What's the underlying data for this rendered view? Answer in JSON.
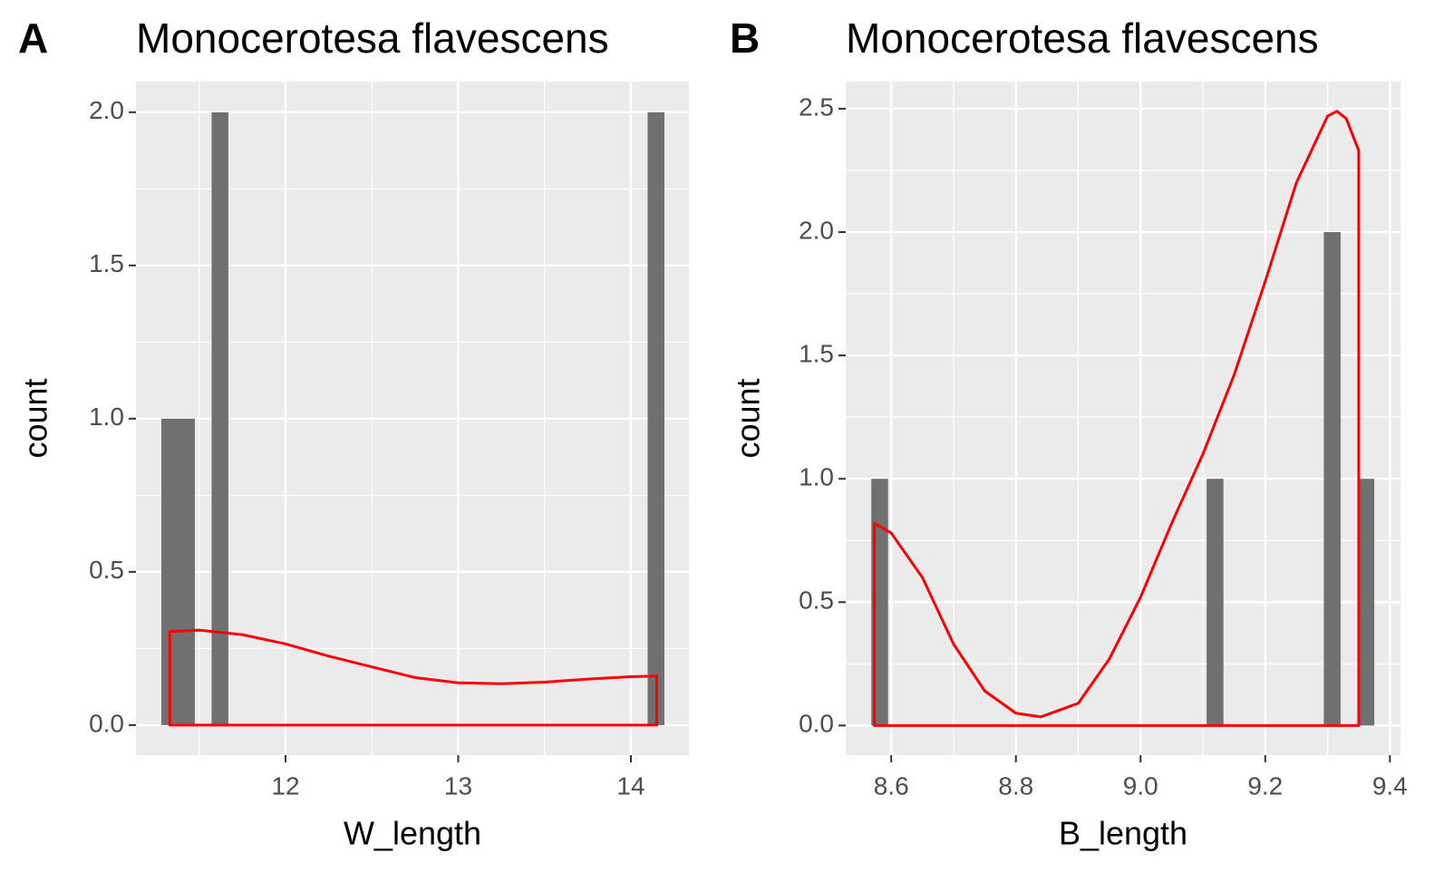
{
  "chart_data": [
    {
      "type": "histogram",
      "tag": "A",
      "title": "Monocerotesa flavescens",
      "xlabel": "W_length",
      "ylabel": "count",
      "bins": [
        11.281,
        11.378,
        11.475,
        11.572,
        11.669,
        11.767,
        11.864,
        11.961,
        12.058,
        12.155,
        12.252,
        12.349,
        12.446,
        12.543,
        12.64,
        12.738,
        12.835,
        12.932,
        13.029,
        13.126,
        13.223,
        13.32,
        13.417,
        13.514,
        13.611,
        13.709,
        13.806,
        13.903,
        14.0,
        14.097,
        14.194
      ],
      "counts": [
        1,
        1,
        0,
        2,
        0,
        0,
        0,
        0,
        0,
        0,
        0,
        0,
        0,
        0,
        0,
        0,
        0,
        0,
        0,
        0,
        0,
        0,
        0,
        0,
        0,
        0,
        0,
        0,
        0,
        2
      ],
      "color": "#707070",
      "density": {
        "color": "#ff0000",
        "x": [
          11.33,
          11.5,
          11.75,
          12,
          12.25,
          12.5,
          12.75,
          13,
          13.25,
          13.5,
          13.75,
          14,
          14.15
        ],
        "y": [
          0.305,
          0.31,
          0.295,
          0.265,
          0.225,
          0.19,
          0.155,
          0.138,
          0.135,
          0.14,
          0.15,
          0.158,
          0.16
        ]
      },
      "xlim": [
        11.134,
        14.336
      ],
      "ylim": [
        -0.098,
        2.1
      ],
      "xticks": [
        12,
        13,
        14
      ],
      "yticks": [
        {
          "value": 0,
          "label": "0.0"
        },
        0.5,
        {
          "value": 1,
          "label": "1.0"
        },
        1.5,
        {
          "value": 2,
          "label": "2.0"
        }
      ]
    },
    {
      "type": "histogram",
      "tag": "B",
      "title": "Monocerotesa flavescens",
      "xlabel": "B_length",
      "ylabel": "count",
      "bins": [
        8.568,
        8.595,
        8.622,
        8.649,
        8.676,
        8.703,
        8.729,
        8.756,
        8.783,
        8.81,
        8.837,
        8.864,
        8.891,
        8.918,
        8.945,
        8.972,
        8.998,
        9.025,
        9.052,
        9.079,
        9.106,
        9.133,
        9.16,
        9.187,
        9.214,
        9.241,
        9.267,
        9.294,
        9.321,
        9.348,
        9.375
      ],
      "counts": [
        1,
        0,
        0,
        0,
        0,
        0,
        0,
        0,
        0,
        0,
        0,
        0,
        0,
        0,
        0,
        0,
        0,
        0,
        0,
        0,
        1,
        0,
        0,
        0,
        0,
        0,
        0,
        2,
        0,
        1
      ],
      "color": "#707070",
      "density": {
        "color": "#ff0000",
        "x": [
          8.573,
          8.6,
          8.65,
          8.7,
          8.75,
          8.8,
          8.84,
          8.9,
          8.95,
          9.0,
          9.05,
          9.1,
          9.15,
          9.2,
          9.25,
          9.3,
          9.315,
          9.33,
          9.35
        ],
        "y": [
          0.82,
          0.78,
          0.6,
          0.33,
          0.14,
          0.05,
          0.035,
          0.09,
          0.27,
          0.52,
          0.82,
          1.1,
          1.42,
          1.8,
          2.2,
          2.47,
          2.49,
          2.46,
          2.33
        ]
      },
      "xlim": [
        8.527,
        9.417
      ],
      "ylim": [
        -0.12,
        2.61
      ],
      "xticks": [
        8.6,
        8.8,
        {
          "value": 9,
          "label": "9.0"
        },
        9.2,
        9.4
      ],
      "yticks": [
        {
          "value": 0,
          "label": "0.0"
        },
        0.5,
        {
          "value": 1,
          "label": "1.0"
        },
        1.5,
        {
          "value": 2,
          "label": "2.0"
        },
        2.5
      ]
    }
  ]
}
